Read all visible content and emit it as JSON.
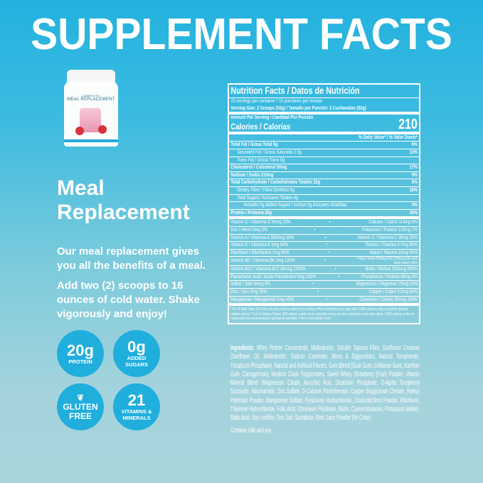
{
  "title": "SUPPLEMENT FACTS",
  "product": {
    "brand": "COMPLETE",
    "name": "MEAL REPLACEMENT"
  },
  "heading": "Meal Replacement",
  "para1": "Our meal replacement gives you all the benefits of a meal.",
  "para2": "Add two (2) scoops to 16 ounces of cold water. Shake vigorously and enjoy!",
  "badges": [
    {
      "big": "20g",
      "small": "PROTEIN"
    },
    {
      "big": "0g",
      "small": "ADDED SUGARS"
    },
    {
      "icon": "wheat-icon",
      "big": "GLUTEN FREE"
    },
    {
      "big": "21",
      "small": "VITAMINS & MINERALS"
    }
  ],
  "colors": {
    "badge": "#20aedd",
    "top": "#22b2df",
    "bottom": "#a9d4dc"
  },
  "label": {
    "title": "Nutrition Facts / Datos de Nutrición",
    "servings": "15 servings per container / 15 porciones por envase",
    "serving_size": "Serving Size: 2 Scoops (52g) / Tamaño por Porción: 2 Cucharadas (52g)",
    "amount": "Amount Per Serving / Cantidad Por Porción",
    "calories_label": "Calories / Calorías",
    "calories": "210",
    "dv_header": "% Daily Value* / % Valor Diario*",
    "nutrients": [
      {
        "name": "Total Fat / Grasa Total 5g",
        "dv": "6%"
      },
      {
        "name": "Saturated Fat / Grasa Saturada 2.5g",
        "dv": "13%"
      },
      {
        "name": "Trans Fat / Grasa Trans 0g",
        "dv": ""
      },
      {
        "name": "Cholesterol / Colesterol 50mg",
        "dv": "17%"
      },
      {
        "name": "Sodium / Sodio 210mg",
        "dv": "9%"
      },
      {
        "name": "Total Carbohydrate / Carbohidratos Totales 22g",
        "dv": "8%"
      },
      {
        "name": "Dietary Fiber / Fibra Dietética 5g",
        "dv": "18%"
      },
      {
        "name": "Total Sugars / Azúcares Totales 4g",
        "dv": ""
      },
      {
        "name": "Includes 0g Added Sugars / Incluye 0g Azúcares Añadidas",
        "dv": "0%"
      },
      {
        "name": "Protein / Proteína 20g",
        "dv": "40%"
      }
    ],
    "vitamins": [
      [
        "Vitamin D / Vitamina D 5mcg  25%",
        "Calcium / Calcio 114mg 8%"
      ],
      [
        "Iron / Hierro  0mg  0%",
        "Potassium / Potasio 120mg 2%"
      ],
      [
        "Vitamin A / Vitamina A 300mcg  35%",
        "Vitamin C / Vitamina C 30mg 35%"
      ],
      [
        "Vitamin E / Vitamina E 9mg  60%",
        "Thiamin / Tiamina 0.7mg 60%"
      ],
      [
        "Riboflavin / Riboflavina  1mg  80%",
        "Niacin / Niacina 10mg 60%"
      ],
      [
        "Vitamin B6 / Vitamina B6 2mg 120%",
        "Folate / Folato 555mcg DFE (328mcg folic acid/ácido fólico) 140%"
      ],
      [
        "Vitamin B12 / Vitamina B12 30mcg 1250%",
        "Biotin / Biotina 150mcg 500%"
      ],
      [
        "Pantothenic Acid / Ácido Pantoténico 5mg 100%",
        "Phosphorus / Fósforo 98mg 8%"
      ],
      [
        "Iodine / Iodo  8mcg  6%",
        "Magnesium / Magnesio 75mg  20%"
      ],
      [
        "Zinc / Zinc  4mg  35%",
        "Copper / Cobre  0.5mg  60%"
      ],
      [
        "Manganese / Manganeso  1mg  45%",
        "Chromium / Cromo 35mcg 100%"
      ]
    ],
    "footnote": "*The % Daily Value (DV) tells you how much a nutrient in a serving of food contributes to a daily diet. 2,000 calories a day is used for general nutrition advice / *Los % Valores Diarios (VD) indican cuánto de un nutriente en una porción contribuye a una dieta diaria. 2,000 calorías al día se usado para una recomendación general de nutrición. † Not a Low Calorie Food."
  },
  "ingredients_label": "Ingredients:",
  "ingredients": " Whey Protein Concentrate, Maltodextrin, Soluble Tapioca Fiber, Sunflower Creamer (Sunflower Oil, Maltodextrin, Sodium Caseinate, Mono & Diglycerides, Natural Tocopherols, Tricalcium Phosphate), Natural and Artificial Flavors, Gum Blend (Guar Gum, Cellulose Gum, Xanthan Gum, Carrageenan), Medium Chain Triglycerides, Sweet Whey, Strawberry (Fruit) Powder, Vitamin Mineral Blend (Magnesium Citrate, Ascorbic Acid, Dicalcium Phosphate, D-Alpha Tocopheryl Succinate, Niacinamide, Zinc Sulfate, D-Calcium Pantothenate, Copper Bisglycinate Chelate, Retinyl Palmitate Powder, Manganese Sulfate, Pyridoxine Hydrochloride, Cholecalciferol Powder, Riboflavin, Thiamine Hydrochloride, Folic Acid, Chromium Picolinate, Biotin, Cyanocobalamin, Potassium Iodide), Malic Acid, Soy Lecithin, Sea Salt, Sucralose, Beet Juice Powder (for Color).",
  "contains": "Contains milk and soy."
}
